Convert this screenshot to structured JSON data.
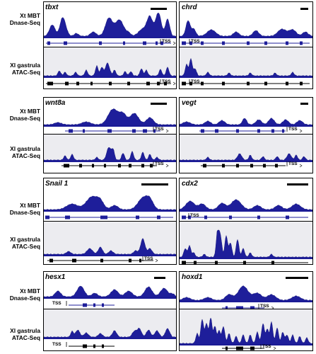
{
  "row_labels": {
    "mbt": [
      "Xt MBT",
      "Dnase-Seq"
    ],
    "gastrula": [
      "Xl gastrula",
      "ATAC-Seq"
    ]
  },
  "tss_label": "TSS",
  "colors": {
    "peak": "#1e1e9a",
    "peak_edge": "#0d0d72",
    "annotation": "#1e1e9a",
    "panel_bg": "#ececf0"
  },
  "groups": [
    {
      "panels": [
        {
          "gene": "tbxt",
          "mbt_gene_label": false
        },
        {
          "gene": "chrd",
          "mbt_gene_label": false
        }
      ]
    },
    {
      "panels": [
        {
          "gene": "wnt8a",
          "mbt_gene_label": false
        },
        {
          "gene": "vegt",
          "mbt_gene_label": false
        }
      ]
    },
    {
      "panels": [
        {
          "gene": "Snail 1",
          "mbt_gene_label": false
        },
        {
          "gene": "cdx2",
          "mbt_gene_label": false
        }
      ]
    },
    {
      "panels": [
        {
          "gene": "hesx1",
          "mbt_gene_label": false
        },
        {
          "gene": "hoxd1",
          "mbt_gene_label": false
        }
      ]
    }
  ]
}
